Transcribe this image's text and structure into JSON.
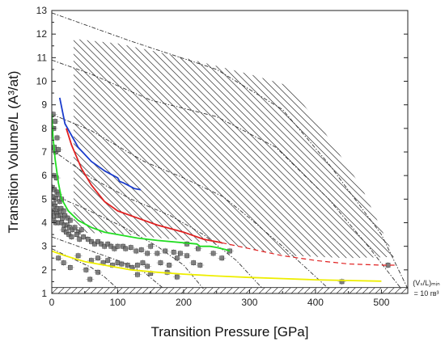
{
  "chart_data": {
    "type": "scatter",
    "xlabel": "Transition Pressure [GPa]",
    "ylabel": "Transition Volume/L (A³/at)",
    "xlim": [
      0,
      540
    ],
    "ylim": [
      1,
      13
    ],
    "xticks": [
      0,
      100,
      200,
      300,
      400,
      500
    ],
    "yticks": [
      1,
      2,
      3,
      4,
      5,
      6,
      7,
      8,
      9,
      10,
      11,
      12,
      13
    ],
    "grid": false,
    "annotation": {
      "line1": "(Vₛ/L)ₘᵢₙ",
      "line2": "= 10 rʙ³"
    },
    "hatched_band_polygon": [
      [
        33,
        11.8
      ],
      [
        33,
        3.6
      ],
      [
        110,
        3.5
      ],
      [
        260,
        3.1
      ],
      [
        360,
        2.6
      ],
      [
        450,
        2.5
      ],
      [
        520,
        2.55
      ],
      [
        470,
        5.5
      ],
      [
        410,
        8.0
      ],
      [
        360,
        9.8
      ],
      [
        300,
        10.3
      ],
      [
        200,
        11.0
      ],
      [
        100,
        11.6
      ]
    ],
    "floor_band": {
      "y_min": 1.0,
      "y_max": 1.25
    },
    "dashdot_lines": [
      [
        [
          0,
          12.9
        ],
        [
          120,
          11.7
        ],
        [
          250,
          10.5
        ],
        [
          350,
          8.8
        ],
        [
          420,
          6.5
        ],
        [
          500,
          3.5
        ],
        [
          540,
          1.2
        ]
      ],
      [
        [
          0,
          10.9
        ],
        [
          60,
          10.3
        ],
        [
          150,
          9.2
        ],
        [
          250,
          8.5
        ],
        [
          340,
          7.2
        ],
        [
          420,
          5.0
        ],
        [
          480,
          3.0
        ],
        [
          530,
          1.2
        ]
      ],
      [
        [
          0,
          8.6
        ],
        [
          60,
          7.9
        ],
        [
          140,
          6.6
        ],
        [
          200,
          5.9
        ],
        [
          260,
          5.1
        ],
        [
          300,
          4.2
        ],
        [
          350,
          3.0
        ],
        [
          420,
          1.2
        ]
      ],
      [
        [
          0,
          7.1
        ],
        [
          60,
          5.9
        ],
        [
          120,
          5.0
        ],
        [
          180,
          4.3
        ],
        [
          230,
          3.5
        ],
        [
          280,
          2.4
        ],
        [
          320,
          1.2
        ]
      ],
      [
        [
          0,
          5.2
        ],
        [
          50,
          4.6
        ],
        [
          110,
          3.8
        ],
        [
          160,
          3.0
        ],
        [
          200,
          2.2
        ],
        [
          230,
          1.2
        ]
      ],
      [
        [
          0,
          3.4
        ],
        [
          50,
          2.9
        ],
        [
          100,
          2.4
        ],
        [
          140,
          1.9
        ],
        [
          170,
          1.2
        ]
      ],
      [
        [
          0,
          2.9
        ],
        [
          30,
          2.5
        ],
        [
          60,
          2.1
        ],
        [
          80,
          1.7
        ],
        [
          100,
          1.2
        ]
      ]
    ],
    "series": [
      {
        "color": "#1a3ccc",
        "points": [
          [
            12,
            9.3
          ],
          [
            20,
            8.2
          ],
          [
            40,
            7.2
          ],
          [
            60,
            6.6
          ],
          [
            80,
            6.2
          ],
          [
            100,
            5.9
          ],
          [
            103,
            5.75
          ],
          [
            108,
            5.7
          ],
          [
            115,
            5.6
          ],
          [
            125,
            5.45
          ],
          [
            135,
            5.4
          ]
        ]
      },
      {
        "color": "#e02020",
        "points": [
          [
            22,
            8.0
          ],
          [
            30,
            7.3
          ],
          [
            45,
            6.3
          ],
          [
            60,
            5.6
          ],
          [
            80,
            4.9
          ],
          [
            100,
            4.5
          ],
          [
            130,
            4.2
          ],
          [
            160,
            3.9
          ],
          [
            200,
            3.6
          ],
          [
            230,
            3.3
          ],
          [
            258,
            3.15
          ]
        ]
      },
      {
        "color": "#e02020",
        "dashed": true,
        "points": [
          [
            258,
            3.15
          ],
          [
            300,
            2.9
          ],
          [
            350,
            2.6
          ],
          [
            400,
            2.4
          ],
          [
            450,
            2.25
          ],
          [
            500,
            2.2
          ],
          [
            520,
            2.2
          ]
        ]
      },
      {
        "color": "#22dd22",
        "points": [
          [
            0,
            8.6
          ],
          [
            2,
            7.6
          ],
          [
            5,
            6.7
          ],
          [
            10,
            5.7
          ],
          [
            15,
            5.0
          ],
          [
            25,
            4.5
          ],
          [
            40,
            4.1
          ],
          [
            60,
            3.8
          ],
          [
            80,
            3.6
          ],
          [
            100,
            3.5
          ],
          [
            130,
            3.35
          ],
          [
            160,
            3.25
          ],
          [
            200,
            3.15
          ],
          [
            220,
            3.1
          ],
          [
            225,
            3.0
          ],
          [
            240,
            3.0
          ],
          [
            250,
            2.95
          ],
          [
            265,
            2.85
          ],
          [
            270,
            2.8
          ]
        ]
      },
      {
        "color": "#eeee00",
        "points": [
          [
            0,
            2.8
          ],
          [
            20,
            2.6
          ],
          [
            50,
            2.35
          ],
          [
            80,
            2.2
          ],
          [
            120,
            2.0
          ],
          [
            160,
            1.9
          ],
          [
            200,
            1.82
          ],
          [
            250,
            1.74
          ],
          [
            300,
            1.68
          ],
          [
            350,
            1.63
          ],
          [
            400,
            1.58
          ],
          [
            450,
            1.55
          ],
          [
            500,
            1.52
          ]
        ]
      }
    ],
    "scatter_points": [
      [
        2,
        8.6
      ],
      [
        5,
        8.3
      ],
      [
        3,
        8.0
      ],
      [
        8,
        7.6
      ],
      [
        4,
        7.2
      ],
      [
        6,
        7.0
      ],
      [
        10,
        7.1
      ],
      [
        3,
        6.0
      ],
      [
        7,
        5.9
      ],
      [
        1,
        5.5
      ],
      [
        4,
        5.4
      ],
      [
        8,
        5.3
      ],
      [
        2,
        5.1
      ],
      [
        6,
        5.0
      ],
      [
        10,
        5.2
      ],
      [
        12,
        4.9
      ],
      [
        15,
        5.0
      ],
      [
        3,
        4.8
      ],
      [
        5,
        4.7
      ],
      [
        8,
        4.6
      ],
      [
        11,
        4.5
      ],
      [
        14,
        4.6
      ],
      [
        18,
        4.5
      ],
      [
        2,
        4.5
      ],
      [
        4,
        4.3
      ],
      [
        7,
        4.4
      ],
      [
        9,
        4.3
      ],
      [
        13,
        4.3
      ],
      [
        16,
        4.2
      ],
      [
        20,
        4.3
      ],
      [
        24,
        4.2
      ],
      [
        28,
        4.1
      ],
      [
        3,
        4.1
      ],
      [
        6,
        4.0
      ],
      [
        10,
        4.0
      ],
      [
        15,
        4.0
      ],
      [
        19,
        3.9
      ],
      [
        23,
        3.9
      ],
      [
        27,
        3.8
      ],
      [
        31,
        3.7
      ],
      [
        35,
        3.8
      ],
      [
        40,
        3.6
      ],
      [
        45,
        3.7
      ],
      [
        18,
        3.7
      ],
      [
        22,
        3.6
      ],
      [
        26,
        3.5
      ],
      [
        30,
        3.4
      ],
      [
        38,
        3.5
      ],
      [
        42,
        3.3
      ],
      [
        48,
        3.4
      ],
      [
        55,
        3.3
      ],
      [
        60,
        3.2
      ],
      [
        65,
        3.1
      ],
      [
        70,
        3.2
      ],
      [
        75,
        3.1
      ],
      [
        80,
        3.0
      ],
      [
        85,
        3.1
      ],
      [
        90,
        3.0
      ],
      [
        95,
        2.9
      ],
      [
        100,
        3.0
      ],
      [
        108,
        3.0
      ],
      [
        112,
        2.9
      ],
      [
        120,
        2.95
      ],
      [
        128,
        2.8
      ],
      [
        136,
        2.85
      ],
      [
        145,
        2.7
      ],
      [
        150,
        3.0
      ],
      [
        160,
        2.7
      ],
      [
        172,
        2.8
      ],
      [
        185,
        2.75
      ],
      [
        195,
        2.7
      ],
      [
        205,
        3.1
      ],
      [
        222,
        2.9
      ],
      [
        245,
        2.7
      ],
      [
        258,
        2.5
      ],
      [
        270,
        2.8
      ],
      [
        60,
        2.4
      ],
      [
        70,
        2.5
      ],
      [
        78,
        2.3
      ],
      [
        85,
        2.4
      ],
      [
        92,
        2.2
      ],
      [
        100,
        2.3
      ],
      [
        106,
        2.25
      ],
      [
        115,
        2.2
      ],
      [
        122,
        2.1
      ],
      [
        130,
        2.2
      ],
      [
        138,
        2.3
      ],
      [
        145,
        2.15
      ],
      [
        165,
        2.3
      ],
      [
        178,
        2.2
      ],
      [
        190,
        2.5
      ],
      [
        205,
        2.6
      ],
      [
        215,
        2.3
      ],
      [
        225,
        2.2
      ],
      [
        40,
        2.6
      ],
      [
        52,
        2.0
      ],
      [
        58,
        1.6
      ],
      [
        70,
        1.9
      ],
      [
        130,
        1.8
      ],
      [
        150,
        1.85
      ],
      [
        175,
        1.9
      ],
      [
        190,
        1.7
      ],
      [
        440,
        1.5
      ],
      [
        510,
        2.2
      ],
      [
        10,
        2.5
      ],
      [
        18,
        2.3
      ],
      [
        28,
        2.1
      ]
    ]
  }
}
